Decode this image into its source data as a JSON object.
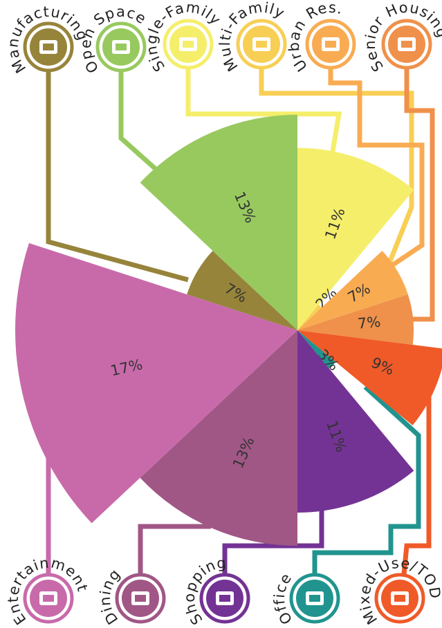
{
  "chart_data": {
    "type": "rose",
    "categories": [
      "Single-Family",
      "Multi-Family",
      "Urban Res.",
      "Senior Housing",
      "Mixed-Use/TOD",
      "Office",
      "Shopping",
      "Dining",
      "Entertainment",
      "Manufacturing",
      "Open Space"
    ],
    "values": [
      11,
      2,
      7,
      7,
      9,
      3,
      11,
      13,
      17,
      7,
      13
    ],
    "value_labels": [
      "11%",
      "2%",
      "7%",
      "7%",
      "9%",
      "3%",
      "11%",
      "13%",
      "17%",
      "7%",
      "13%"
    ],
    "colors": [
      "#f5ee6a",
      "#f8cf55",
      "#f9ab52",
      "#ef914b",
      "#f05a28",
      "#21948f",
      "#733394",
      "#a05786",
      "#c86aaa",
      "#97843b",
      "#98c95f"
    ]
  }
}
